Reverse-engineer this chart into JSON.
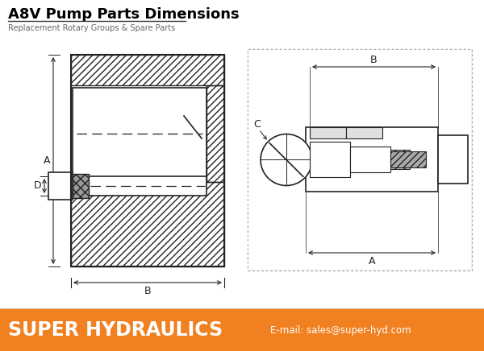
{
  "title": "A8V Pump Parts Dimensions",
  "subtitle": "Replacement Rotary Groups & Spare Parts",
  "footer_text": "SUPER HYDRAULICS",
  "footer_email": "E-mail: sales@super-hyd.com",
  "footer_bg": "#F08020",
  "footer_text_color": "#FFFFFF",
  "title_color": "#000000",
  "subtitle_color": "#666666",
  "bg_color": "#FFFFFF",
  "drawing_color": "#222222",
  "hatch_color": "#555555",
  "gray_fill": "#CCCCCC",
  "light_gray": "#E8E8E8",
  "dark_gray": "#888888"
}
